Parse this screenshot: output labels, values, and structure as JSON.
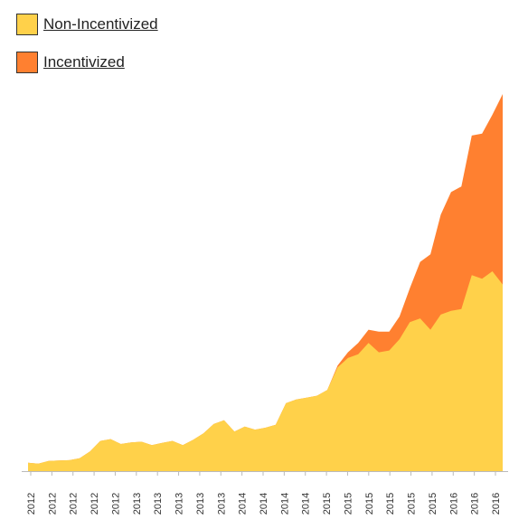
{
  "colors": {
    "non_incentivized": "#FFD14A",
    "incentivized": "#FF8030",
    "axis": "#bbbbbb"
  },
  "chart_data": {
    "type": "area",
    "stacked": true,
    "legend_position": "top-left",
    "grid": false,
    "title": "",
    "xlabel": "",
    "ylabel": "",
    "ylim": [
      0,
      100
    ],
    "x_tick_labels": [
      "2012",
      "2012",
      "2012",
      "2012",
      "2012",
      "2013",
      "2013",
      "2013",
      "2013",
      "2013",
      "2014",
      "2014",
      "2014",
      "2014",
      "2015",
      "2015",
      "2015",
      "2015",
      "2015",
      "2015",
      "2016",
      "2016",
      "2016"
    ],
    "series": [
      {
        "name": "Non-Incentivized",
        "color_key": "non_incentivized",
        "values": [
          2.2,
          2.0,
          2.7,
          2.8,
          2.9,
          3.4,
          5.2,
          8.0,
          8.5,
          7.2,
          7.6,
          7.8,
          6.9,
          7.5,
          8.0,
          6.9,
          8.3,
          10.0,
          12.5,
          13.5,
          10.5,
          11.8,
          11.0,
          11.5,
          12.3,
          18.0,
          19.0,
          19.5,
          20.0,
          21.5,
          27.5,
          30.0,
          31.0,
          34.0,
          31.5,
          32.0,
          35.0,
          39.5,
          40.5,
          37.5,
          41.5,
          42.5,
          43.0,
          52.0,
          51.0,
          53.0,
          49.5
        ],
        "increments": [
          0,
          0,
          0,
          0,
          0,
          0,
          0,
          0,
          0,
          0,
          0,
          0,
          0,
          0,
          0,
          0,
          0,
          0,
          0,
          0,
          0,
          0,
          0,
          0,
          0,
          0,
          0,
          0,
          0,
          0,
          0.5,
          1.5,
          3.0,
          3.5,
          5.5,
          5.0,
          6.0,
          9.0,
          15.0,
          20.0,
          26.5,
          31.5,
          32.5,
          37.0,
          38.5,
          41.5,
          50.5
        ]
      },
      {
        "name": "Incentivized",
        "color_key": "incentivized"
      }
    ]
  }
}
